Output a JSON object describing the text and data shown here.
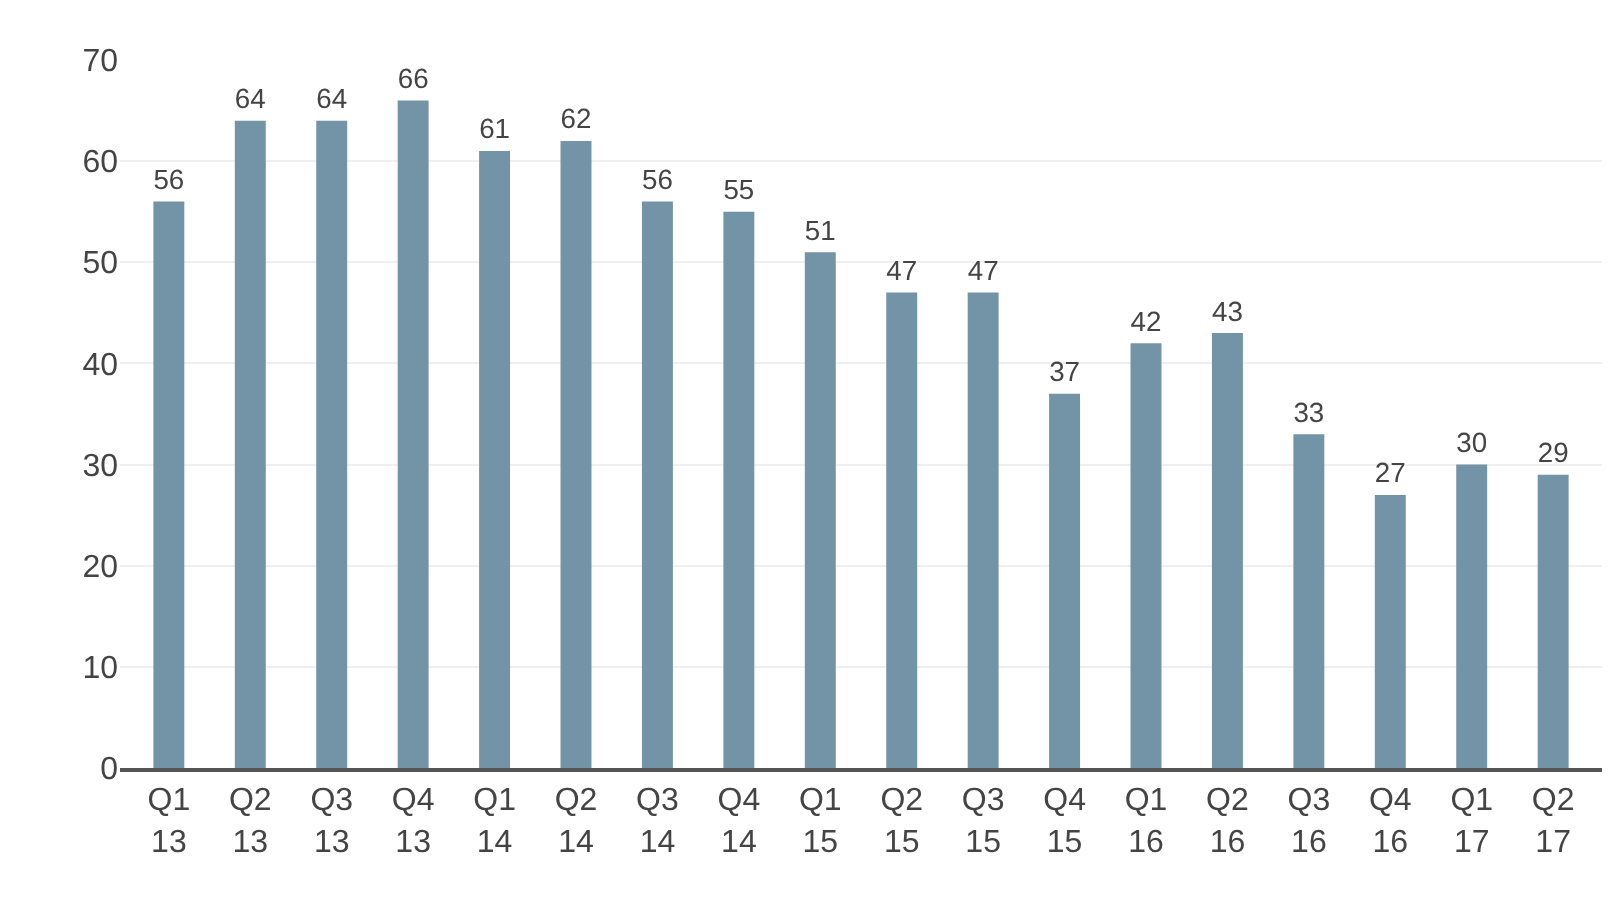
{
  "chart_data": {
    "type": "bar",
    "categories": [
      "Q1 13",
      "Q2 13",
      "Q3 13",
      "Q4 13",
      "Q1 14",
      "Q2 14",
      "Q3 14",
      "Q4 14",
      "Q1 15",
      "Q2 15",
      "Q3 15",
      "Q4 15",
      "Q1 16",
      "Q2 16",
      "Q3 16",
      "Q4 16",
      "Q1 17",
      "Q2 17"
    ],
    "values": [
      56,
      64,
      64,
      66,
      61,
      62,
      56,
      55,
      51,
      47,
      47,
      37,
      42,
      43,
      33,
      27,
      30,
      29
    ],
    "color": "#7393a7",
    "ylim": [
      0,
      70
    ],
    "yticks": [
      0,
      10,
      20,
      30,
      40,
      50,
      60,
      70
    ],
    "grid": "y",
    "data_labels": true
  }
}
